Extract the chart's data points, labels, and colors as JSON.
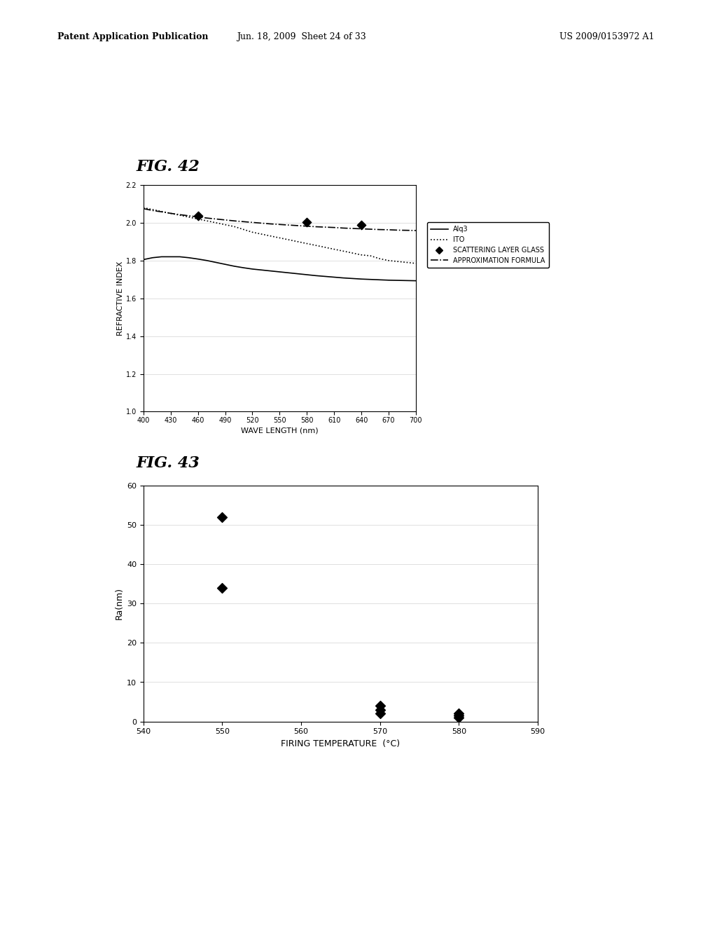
{
  "fig42": {
    "title": "FIG. 42",
    "xlabel": "WAVE LENGTH (nm)",
    "ylabel": "REFRACTIVE INDEX",
    "xlim": [
      400,
      700
    ],
    "ylim": [
      1.0,
      2.2
    ],
    "xticks": [
      400,
      430,
      460,
      490,
      520,
      550,
      580,
      610,
      640,
      670,
      700
    ],
    "yticks": [
      1.0,
      1.2,
      1.4,
      1.6,
      1.8,
      2.0,
      2.2
    ],
    "alq3_x": [
      400,
      410,
      420,
      430,
      440,
      450,
      460,
      470,
      480,
      490,
      500,
      510,
      520,
      530,
      540,
      550,
      560,
      570,
      580,
      590,
      600,
      610,
      620,
      630,
      640,
      650,
      660,
      670,
      680,
      690,
      700
    ],
    "alq3_y": [
      1.805,
      1.815,
      1.82,
      1.82,
      1.82,
      1.815,
      1.808,
      1.8,
      1.79,
      1.78,
      1.77,
      1.762,
      1.755,
      1.75,
      1.745,
      1.74,
      1.735,
      1.73,
      1.725,
      1.72,
      1.716,
      1.712,
      1.708,
      1.705,
      1.702,
      1.7,
      1.698,
      1.696,
      1.695,
      1.694,
      1.693
    ],
    "ito_x": [
      400,
      410,
      420,
      430,
      440,
      450,
      460,
      470,
      480,
      490,
      500,
      510,
      520,
      530,
      540,
      550,
      560,
      570,
      580,
      590,
      600,
      610,
      620,
      630,
      640,
      650,
      660,
      670,
      680,
      690,
      700
    ],
    "ito_y": [
      2.08,
      2.07,
      2.06,
      2.05,
      2.04,
      2.03,
      2.02,
      2.01,
      2.0,
      1.99,
      1.98,
      1.965,
      1.95,
      1.94,
      1.93,
      1.92,
      1.91,
      1.9,
      1.89,
      1.88,
      1.87,
      1.86,
      1.85,
      1.84,
      1.83,
      1.825,
      1.81,
      1.8,
      1.795,
      1.79,
      1.785
    ],
    "scatter_x": [
      460,
      580,
      640
    ],
    "scatter_y": [
      2.035,
      2.005,
      1.99
    ],
    "approx_x": [
      400,
      410,
      420,
      430,
      440,
      450,
      460,
      470,
      480,
      490,
      500,
      510,
      520,
      530,
      540,
      550,
      560,
      570,
      580,
      590,
      600,
      610,
      620,
      630,
      640,
      650,
      660,
      670,
      680,
      690,
      700
    ],
    "approx_y": [
      2.075,
      2.065,
      2.058,
      2.05,
      2.043,
      2.037,
      2.031,
      2.025,
      2.02,
      2.015,
      2.01,
      2.006,
      2.002,
      1.998,
      1.994,
      1.991,
      1.988,
      1.985,
      1.982,
      1.979,
      1.977,
      1.975,
      1.972,
      1.97,
      1.968,
      1.966,
      1.964,
      1.963,
      1.961,
      1.96,
      1.959
    ],
    "legend_labels": [
      "Alq3",
      "ITO",
      "SCATTERING LAYER GLASS",
      "APPROXIMATION FORMULA"
    ]
  },
  "fig43": {
    "title": "FIG. 43",
    "xlabel": "FIRING TEMPERATURE  (°C)",
    "ylabel": "Ra(nm)",
    "xlim": [
      540,
      590
    ],
    "ylim": [
      0,
      60
    ],
    "xticks": [
      540,
      550,
      560,
      570,
      580,
      590
    ],
    "yticks": [
      0,
      10,
      20,
      30,
      40,
      50,
      60
    ],
    "scatter_x": [
      550,
      550,
      570,
      570,
      570,
      580,
      580,
      580
    ],
    "scatter_y": [
      52,
      34,
      4,
      3,
      2,
      2,
      1.5,
      1
    ]
  },
  "header_left": "Patent Application Publication",
  "header_mid": "Jun. 18, 2009  Sheet 24 of 33",
  "header_right": "US 2009/0153972 A1"
}
